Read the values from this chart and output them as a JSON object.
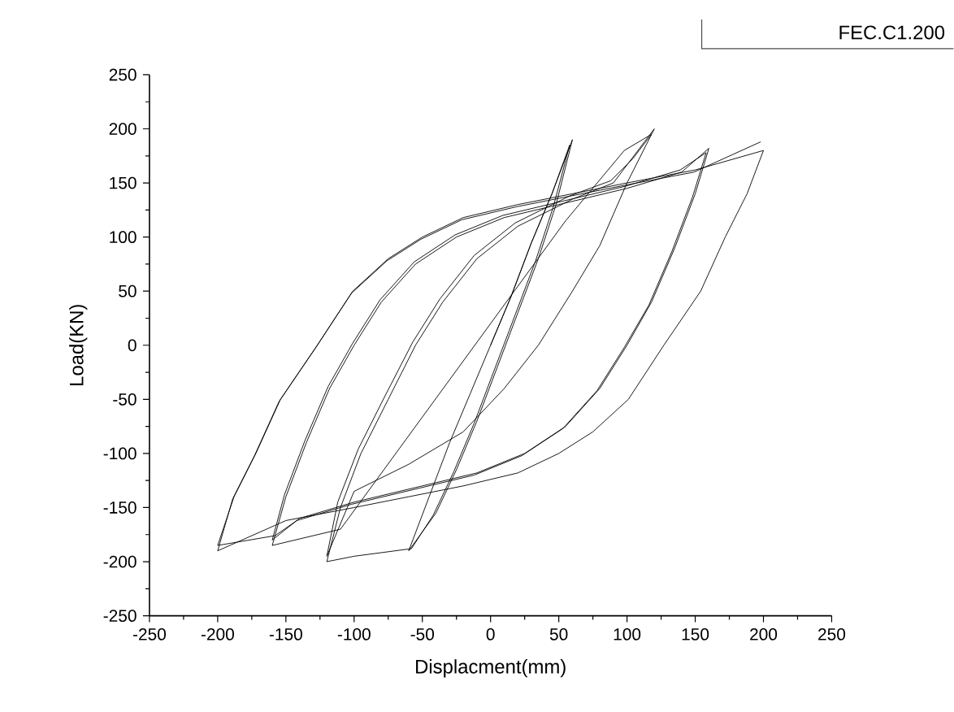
{
  "chart_data": {
    "type": "line",
    "xlabel": "Displacment(mm)",
    "ylabel": "Load(KN)",
    "annotations": [
      "FEC.C1.200"
    ],
    "xlim": [
      -250,
      250
    ],
    "ylim": [
      -250,
      250
    ],
    "xticks": [
      -250,
      {
        "value": -225,
        "label": null
      },
      -200,
      {
        "value": -175,
        "label": null
      },
      -150,
      {
        "value": -125,
        "label": null
      },
      -100,
      {
        "value": -75,
        "label": null
      },
      -50,
      {
        "value": -25,
        "label": null
      },
      0,
      {
        "value": 25,
        "label": null
      },
      50,
      {
        "value": 75,
        "label": null
      },
      100,
      {
        "value": 125,
        "label": null
      },
      150,
      {
        "value": 175,
        "label": null
      },
      200,
      {
        "value": 225,
        "label": null
      },
      250
    ],
    "yticks": [
      -250,
      {
        "value": -225,
        "label": null
      },
      -200,
      {
        "value": -175,
        "label": null
      },
      -150,
      {
        "value": -125,
        "label": null
      },
      -100,
      {
        "value": -75,
        "label": null
      },
      -50,
      {
        "value": -25,
        "label": null
      },
      0,
      {
        "value": 25,
        "label": null
      },
      50,
      {
        "value": 75,
        "label": null
      },
      100,
      {
        "value": 125,
        "label": null
      },
      150,
      {
        "value": 175,
        "label": null
      },
      200,
      {
        "value": 225,
        "label": null
      },
      250
    ],
    "grid": false,
    "marker": "none",
    "line_style": "solid",
    "series": [
      {
        "color": "#000000",
        "x": [
          0,
          15,
          30,
          45,
          60,
          48,
          35,
          20,
          5,
          -10,
          -25,
          -40,
          -60,
          -45,
          -30,
          -15,
          0,
          15,
          30,
          45,
          58,
          46,
          33,
          18,
          3,
          -12,
          -27,
          -42,
          -58,
          -100,
          -120,
          -110,
          -95,
          -75,
          -55,
          -35,
          -10,
          20,
          60,
          90,
          105,
          120,
          100,
          80,
          60,
          35,
          10,
          -20,
          -60,
          -100,
          -120,
          -112,
          -97,
          -77,
          -57,
          -37,
          -12,
          18,
          58,
          88,
          104,
          118,
          98,
          55,
          -110,
          -160,
          -150,
          -135,
          -118,
          -100,
          -80,
          -55,
          -25,
          10,
          50,
          100,
          140,
          160,
          150,
          135,
          118,
          100,
          80,
          55,
          25,
          -10,
          -50,
          -100,
          -140,
          -160,
          -151,
          -136,
          -119,
          -101,
          -81,
          -56,
          -26,
          9,
          49,
          99,
          139,
          158,
          148,
          133,
          116,
          98,
          78,
          53,
          23,
          -12,
          -52,
          -102,
          -142,
          -158,
          -200,
          -188,
          -172,
          -154,
          -127,
          -101,
          -75,
          -50,
          -20,
          20,
          60,
          100,
          150,
          200,
          188,
          172,
          154,
          127,
          101,
          75,
          50,
          20,
          -20,
          -60,
          -100,
          -150,
          -200,
          -189,
          -173,
          -155,
          -128,
          -102,
          -76,
          -51,
          -21,
          19,
          59,
          99,
          149,
          198
        ],
        "values": [
          0,
          45,
          95,
          140,
          190,
          130,
          80,
          30,
          -20,
          -70,
          -115,
          -155,
          -190,
          -140,
          -90,
          -45,
          0,
          45,
          95,
          140,
          185,
          128,
          78,
          28,
          -22,
          -72,
          -117,
          -157,
          -188,
          -195,
          -200,
          -150,
          -100,
          -50,
          0,
          40,
          80,
          110,
          135,
          150,
          175,
          200,
          150,
          92,
          50,
          0,
          -40,
          -80,
          -110,
          -135,
          -195,
          -145,
          -96,
          -46,
          3,
          43,
          83,
          113,
          138,
          152,
          172,
          195,
          180,
          115,
          -170,
          -185,
          -140,
          -90,
          -40,
          0,
          40,
          75,
          100,
          118,
          130,
          145,
          160,
          182,
          140,
          90,
          40,
          0,
          -40,
          -75,
          -100,
          -118,
          -130,
          -145,
          -160,
          -180,
          -138,
          -88,
          -38,
          2,
          42,
          77,
          102,
          120,
          132,
          147,
          162,
          178,
          137,
          87,
          37,
          -2,
          -42,
          -77,
          -102,
          -120,
          -132,
          -147,
          -162,
          -176,
          -185,
          -140,
          -100,
          -50,
          0,
          50,
          80,
          100,
          118,
          130,
          140,
          150,
          162,
          180,
          140,
          100,
          50,
          0,
          -50,
          -80,
          -100,
          -118,
          -130,
          -140,
          -150,
          -162,
          -190,
          -142,
          -102,
          -52,
          -2,
          48,
          78,
          98,
          116,
          128,
          138,
          148,
          160,
          188
        ]
      }
    ]
  }
}
